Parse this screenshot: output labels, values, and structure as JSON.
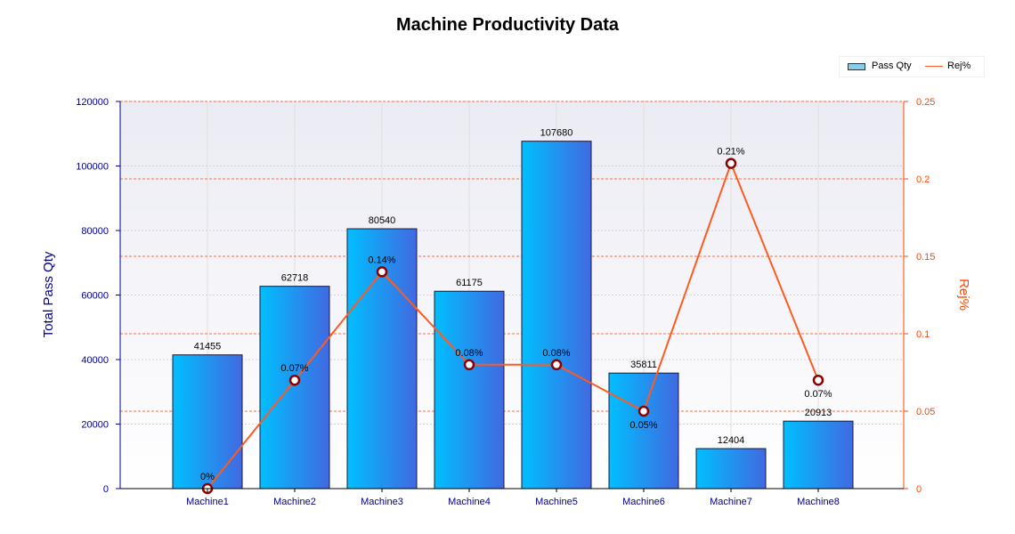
{
  "chart_data": {
    "type": "bar",
    "title": "Machine Productivity Data",
    "categories": [
      "Machine1",
      "Machine2",
      "Machine3",
      "Machine4",
      "Machine5",
      "Machine6",
      "Machine7",
      "Machine8"
    ],
    "series": [
      {
        "name": "Pass Qty",
        "type": "bar",
        "axis": "left",
        "values": [
          41455,
          62718,
          80540,
          61175,
          107680,
          35811,
          12404,
          20913
        ],
        "labels": [
          "41455",
          "62718",
          "80540",
          "61175",
          "107680",
          "35811",
          "12404",
          "20913"
        ]
      },
      {
        "name": "Rej%",
        "type": "line",
        "axis": "right",
        "values": [
          0,
          0.07,
          0.14,
          0.08,
          0.08,
          0.05,
          0.21,
          0.07
        ],
        "labels": [
          "0%",
          "0.07%",
          "0.14%",
          "0.08%",
          "0.08%",
          "0.05%",
          "0.21%",
          "0.07%"
        ]
      }
    ],
    "ylabel": "Total Pass Qty",
    "y2label": "Rej%",
    "ylim": [
      0,
      120000
    ],
    "y2lim": [
      0,
      0.25
    ],
    "yticks": [
      "0",
      "20000",
      "40000",
      "60000",
      "80000",
      "100000",
      "120000"
    ],
    "y2ticks": [
      "0",
      "0.05",
      "0.1",
      "0.15",
      "0.2",
      "0.25"
    ],
    "legend_placement": "top-right",
    "colors": {
      "bar_start": "#00bfff",
      "bar_end": "#4169e1",
      "line": "#ff5a1f",
      "marker_fill": "#ffffff",
      "marker_stroke": "#8b0000",
      "left_axis": "#00008b",
      "right_axis": "#ff4500"
    }
  }
}
